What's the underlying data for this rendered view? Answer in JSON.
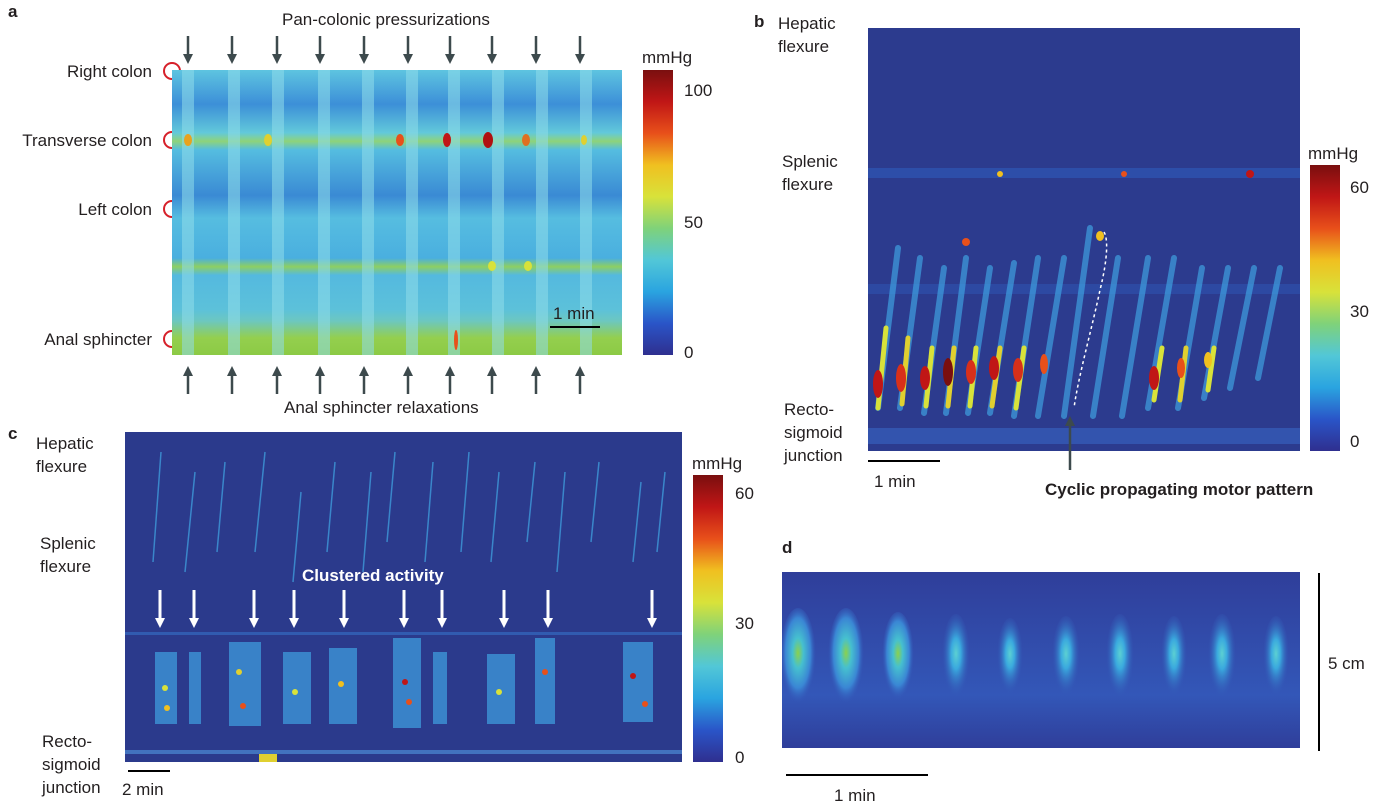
{
  "colors": {
    "jet": [
      "#2f2f8f",
      "#2a55c8",
      "#2aa4e0",
      "#52c7d7",
      "#7fd27a",
      "#d8e23a",
      "#f0c020",
      "#e8501a",
      "#c01616",
      "#7a0f0f"
    ],
    "marker_circle": "#d6202a",
    "arrow": "#3d4a4d"
  },
  "panel_a": {
    "letter": "a",
    "top_title": "Pan-colonic pressurizations",
    "bottom_title": "Anal sphincter relaxations",
    "sites": [
      "Right colon",
      "Transverse colon",
      "Left colon",
      "Anal sphincter"
    ],
    "colorbar": {
      "unit": "mmHg",
      "ticks": [
        "100",
        "50",
        "0"
      ]
    },
    "scale": "1 min"
  },
  "panel_b": {
    "letter": "b",
    "sites": [
      [
        "Hepatic",
        "flexure"
      ],
      [
        "Splenic",
        "flexure"
      ],
      [
        "Recto-",
        "sigmoid",
        "junction"
      ]
    ],
    "colorbar": {
      "unit": "mmHg",
      "ticks": [
        "60",
        "30",
        "0"
      ]
    },
    "scale": "1 min",
    "annotation": "Cyclic propagating motor pattern"
  },
  "panel_c": {
    "letter": "c",
    "sites": [
      [
        "Hepatic",
        "flexure"
      ],
      [
        "Splenic",
        "flexure"
      ],
      [
        "Recto-",
        "sigmoid",
        "junction"
      ]
    ],
    "colorbar": {
      "unit": "mmHg",
      "ticks": [
        "60",
        "30",
        "0"
      ]
    },
    "scale": "2 min",
    "annotation": "Clustered activity"
  },
  "panel_d": {
    "letter": "d",
    "scale_x": "1 min",
    "scale_y": "5 cm"
  }
}
